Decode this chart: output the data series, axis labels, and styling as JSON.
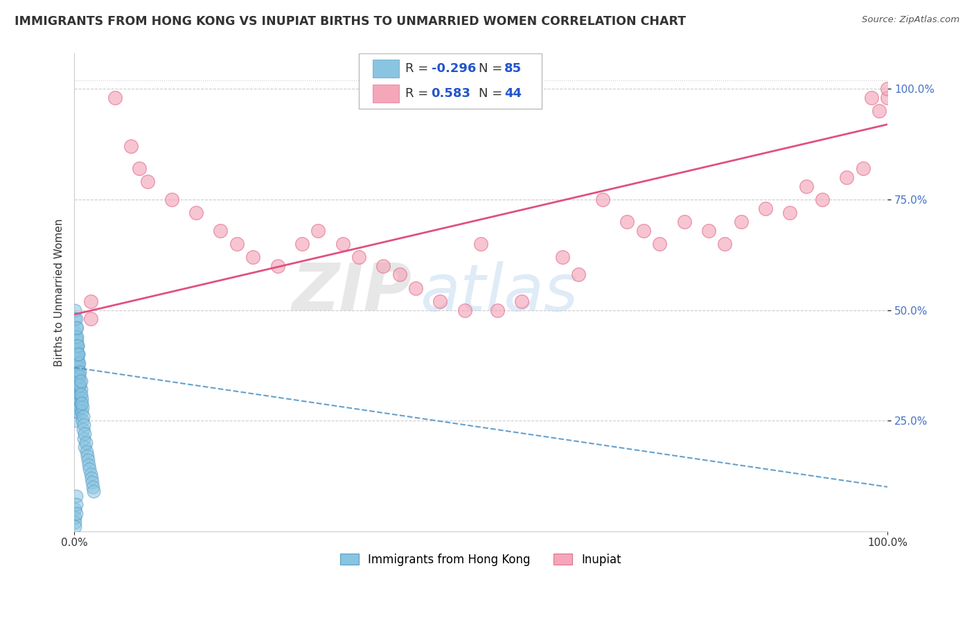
{
  "title": "IMMIGRANTS FROM HONG KONG VS INUPIAT BIRTHS TO UNMARRIED WOMEN CORRELATION CHART",
  "source": "Source: ZipAtlas.com",
  "ylabel": "Births to Unmarried Women",
  "xlim": [
    0.0,
    1.0
  ],
  "ylim": [
    0.0,
    1.08
  ],
  "legend_r_blue": "-0.296",
  "legend_n_blue": "85",
  "legend_r_pink": "0.583",
  "legend_n_pink": "44",
  "blue_color": "#89c4e1",
  "pink_color": "#f4a7b9",
  "blue_edge_color": "#5a9dc5",
  "pink_edge_color": "#e07090",
  "blue_line_color": "#4a90c4",
  "pink_line_color": "#e05080",
  "watermark_zip": "ZIP",
  "watermark_atlas": "atlas",
  "watermark_zip_color": "#d0d0d0",
  "watermark_atlas_color": "#c0d8f0",
  "background_color": "#ffffff",
  "grid_color": "#cccccc",
  "tick_color_blue": "#4472c4",
  "tick_color_black": "#333333",
  "pink_trend_x0": 0.0,
  "pink_trend_y0": 0.49,
  "pink_trend_x1": 1.0,
  "pink_trend_y1": 0.92,
  "blue_trend_x0": 0.0,
  "blue_trend_y0": 0.37,
  "blue_trend_x1": 1.0,
  "blue_trend_y1": 0.1,
  "pink_scatter_x": [
    0.02,
    0.02,
    0.05,
    0.07,
    0.08,
    0.09,
    0.12,
    0.15,
    0.18,
    0.2,
    0.22,
    0.25,
    0.28,
    0.3,
    0.33,
    0.35,
    0.38,
    0.4,
    0.42,
    0.45,
    0.48,
    0.5,
    0.52,
    0.55,
    0.6,
    0.62,
    0.65,
    0.68,
    0.7,
    0.72,
    0.75,
    0.78,
    0.8,
    0.82,
    0.85,
    0.88,
    0.9,
    0.92,
    0.95,
    0.97,
    0.98,
    0.99,
    1.0,
    1.0
  ],
  "pink_scatter_y": [
    0.52,
    0.48,
    0.98,
    0.87,
    0.82,
    0.79,
    0.75,
    0.72,
    0.68,
    0.65,
    0.62,
    0.6,
    0.65,
    0.68,
    0.65,
    0.62,
    0.6,
    0.58,
    0.55,
    0.52,
    0.5,
    0.65,
    0.5,
    0.52,
    0.62,
    0.58,
    0.75,
    0.7,
    0.68,
    0.65,
    0.7,
    0.68,
    0.65,
    0.7,
    0.73,
    0.72,
    0.78,
    0.75,
    0.8,
    0.82,
    0.98,
    0.95,
    0.98,
    1.0
  ],
  "blue_scatter_x": [
    0.001,
    0.001,
    0.001,
    0.001,
    0.001,
    0.002,
    0.002,
    0.002,
    0.002,
    0.002,
    0.003,
    0.003,
    0.003,
    0.003,
    0.003,
    0.004,
    0.004,
    0.004,
    0.004,
    0.004,
    0.005,
    0.005,
    0.005,
    0.005,
    0.006,
    0.006,
    0.006,
    0.007,
    0.007,
    0.007,
    0.008,
    0.008,
    0.009,
    0.009,
    0.01,
    0.01,
    0.011,
    0.011,
    0.012,
    0.012,
    0.013,
    0.013,
    0.014,
    0.015,
    0.016,
    0.017,
    0.018,
    0.019,
    0.02,
    0.021,
    0.022,
    0.023,
    0.024,
    0.001,
    0.001,
    0.002,
    0.002,
    0.003,
    0.003,
    0.004,
    0.004,
    0.005,
    0.005,
    0.006,
    0.006,
    0.007,
    0.007,
    0.008,
    0.008,
    0.009,
    0.001,
    0.002,
    0.003,
    0.004,
    0.005,
    0.001,
    0.002,
    0.003,
    0.001,
    0.002,
    0.001,
    0.002,
    0.001,
    0.002,
    0.001
  ],
  "blue_scatter_y": [
    0.38,
    0.35,
    0.32,
    0.28,
    0.25,
    0.4,
    0.37,
    0.34,
    0.3,
    0.27,
    0.42,
    0.38,
    0.35,
    0.32,
    0.28,
    0.4,
    0.36,
    0.33,
    0.3,
    0.27,
    0.38,
    0.35,
    0.32,
    0.29,
    0.36,
    0.33,
    0.3,
    0.34,
    0.31,
    0.28,
    0.32,
    0.29,
    0.3,
    0.27,
    0.28,
    0.25,
    0.26,
    0.23,
    0.24,
    0.21,
    0.22,
    0.19,
    0.2,
    0.18,
    0.17,
    0.16,
    0.15,
    0.14,
    0.13,
    0.12,
    0.11,
    0.1,
    0.09,
    0.45,
    0.42,
    0.44,
    0.41,
    0.43,
    0.4,
    0.42,
    0.39,
    0.4,
    0.37,
    0.38,
    0.35,
    0.36,
    0.33,
    0.34,
    0.31,
    0.29,
    0.48,
    0.46,
    0.44,
    0.42,
    0.4,
    0.5,
    0.48,
    0.46,
    0.05,
    0.08,
    0.03,
    0.06,
    0.02,
    0.04,
    0.01
  ]
}
